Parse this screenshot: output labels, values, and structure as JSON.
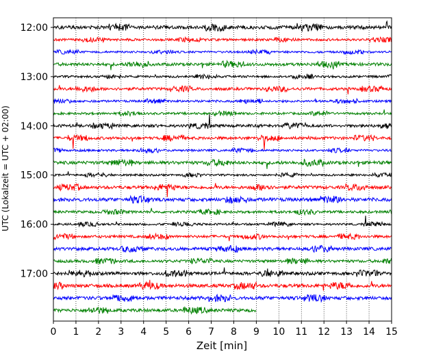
{
  "chart_data": {
    "type": "line",
    "title": "",
    "xlabel": "Zeit  [min]",
    "ylabel": "UTC (Lokalzeit = UTC + 02:00)",
    "xlim": [
      0,
      15
    ],
    "x_ticks": [
      "0",
      "1",
      "2",
      "3",
      "4",
      "5",
      "6",
      "7",
      "8",
      "9",
      "10",
      "11",
      "12",
      "13",
      "14",
      "15"
    ],
    "y_tick_labels": [
      "12:00",
      "13:00",
      "14:00",
      "15:00",
      "16:00",
      "17:00"
    ],
    "grid": "vertical dotted",
    "colors": [
      "#000000",
      "#ff0000",
      "#0000ff",
      "#008000"
    ],
    "series": [
      {
        "start": "12:00",
        "end_min": 15
      },
      {
        "start": "12:15",
        "end_min": 15
      },
      {
        "start": "12:30",
        "end_min": 15
      },
      {
        "start": "12:45",
        "end_min": 15
      },
      {
        "start": "13:00",
        "end_min": 15
      },
      {
        "start": "13:15",
        "end_min": 15
      },
      {
        "start": "13:30",
        "end_min": 15
      },
      {
        "start": "13:45",
        "end_min": 15
      },
      {
        "start": "14:00",
        "end_min": 15
      },
      {
        "start": "14:15",
        "end_min": 15
      },
      {
        "start": "14:30",
        "end_min": 15
      },
      {
        "start": "14:45",
        "end_min": 15
      },
      {
        "start": "15:00",
        "end_min": 15
      },
      {
        "start": "15:15",
        "end_min": 15
      },
      {
        "start": "15:30",
        "end_min": 15
      },
      {
        "start": "15:45",
        "end_min": 15
      },
      {
        "start": "16:00",
        "end_min": 15
      },
      {
        "start": "16:15",
        "end_min": 15
      },
      {
        "start": "16:30",
        "end_min": 15
      },
      {
        "start": "16:45",
        "end_min": 15
      },
      {
        "start": "17:00",
        "end_min": 15
      },
      {
        "start": "17:15",
        "end_min": 15
      },
      {
        "start": "17:30",
        "end_min": 15
      },
      {
        "start": "17:45",
        "end_min": 9
      }
    ]
  }
}
